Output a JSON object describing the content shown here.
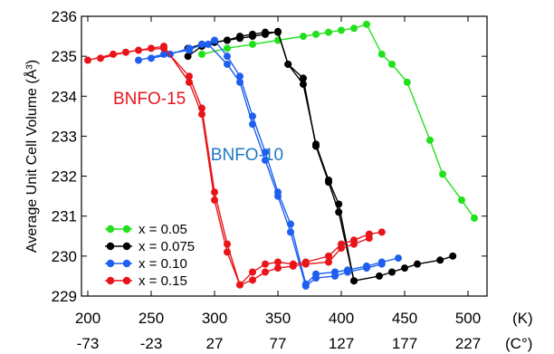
{
  "chart_data": {
    "type": "line",
    "ylabel": "Average Unit Cell Volume (Å³)",
    "x_unit_label": "(K)",
    "x2_unit_label": "(C°)",
    "xlim": [
      195,
      515
    ],
    "ylim": [
      229,
      236
    ],
    "x_ticks": [
      200,
      250,
      300,
      350,
      400,
      450,
      500
    ],
    "x_tick_labels": [
      "200",
      "250",
      "300",
      "350",
      "400",
      "450",
      "500"
    ],
    "x2_tick_labels": [
      "-73",
      "-23",
      "27",
      "77",
      "127",
      "177",
      "227"
    ],
    "y_ticks": [
      229,
      230,
      231,
      232,
      233,
      234,
      235,
      236
    ],
    "y_tick_labels": [
      "229",
      "230",
      "231",
      "232",
      "233",
      "234",
      "235",
      "236"
    ],
    "legend_position": "bottom-left",
    "annotations": [
      {
        "text": "BNFO-15",
        "x": 220,
        "y": 233.8,
        "color": "#e8141a"
      },
      {
        "text": "BNFO-10",
        "x": 297,
        "y": 232.4,
        "color": "#1e78c8"
      }
    ],
    "series": [
      {
        "name": "x = 0.05",
        "color": "#22e11c",
        "segments": [
          [
            [
              290,
              235.05
            ],
            [
              310,
              235.2
            ],
            [
              330,
              235.3
            ],
            [
              350,
              235.4
            ],
            [
              370,
              235.5
            ],
            [
              380,
              235.55
            ],
            [
              390,
              235.6
            ],
            [
              400,
              235.65
            ],
            [
              410,
              235.7
            ],
            [
              420,
              235.8
            ],
            [
              432,
              235.05
            ],
            [
              440,
              234.8
            ],
            [
              452,
              234.35
            ],
            [
              470,
              232.9
            ],
            [
              480,
              232.05
            ],
            [
              495,
              231.4
            ],
            [
              505,
              230.95
            ]
          ]
        ]
      },
      {
        "name": "x = 0.075",
        "color": "#000000",
        "segments": [
          [
            [
              279,
              235.2
            ],
            [
              290,
              235.3
            ],
            [
              300,
              235.35
            ],
            [
              310,
              235.4
            ],
            [
              320,
              235.45
            ],
            [
              330,
              235.5
            ],
            [
              340,
              235.55
            ],
            [
              350,
              235.62
            ],
            [
              358,
              234.8
            ],
            [
              370,
              234.3
            ],
            [
              380,
              232.8
            ],
            [
              390,
              231.9
            ],
            [
              398,
              231.3
            ],
            [
              410,
              229.38
            ],
            [
              430,
              229.5
            ],
            [
              440,
              229.6
            ],
            [
              450,
              229.7
            ],
            [
              460,
              229.8
            ],
            [
              478,
              229.9
            ],
            [
              488,
              230.0
            ]
          ],
          [
            [
              279,
              235.0
            ],
            [
              290,
              235.25
            ],
            [
              300,
              235.35
            ],
            [
              310,
              235.4
            ],
            [
              320,
              235.5
            ],
            [
              330,
              235.55
            ],
            [
              340,
              235.6
            ],
            [
              350,
              235.6
            ],
            [
              358,
              234.8
            ],
            [
              370,
              234.45
            ],
            [
              380,
              232.75
            ],
            [
              390,
              231.85
            ],
            [
              398,
              231.1
            ],
            [
              410,
              229.38
            ]
          ]
        ]
      },
      {
        "name": "x = 0.10",
        "color": "#1e5ff0",
        "segments": [
          [
            [
              240,
              234.9
            ],
            [
              260,
              235.05
            ],
            [
              280,
              235.15
            ],
            [
              290,
              235.3
            ],
            [
              300,
              235.4
            ],
            [
              310,
              235.0
            ],
            [
              320,
              234.5
            ],
            [
              330,
              233.5
            ],
            [
              340,
              232.6
            ],
            [
              350,
              231.6
            ],
            [
              360,
              230.8
            ],
            [
              372,
              229.3
            ],
            [
              380,
              229.55
            ],
            [
              395,
              229.6
            ],
            [
              405,
              229.65
            ],
            [
              420,
              229.75
            ],
            [
              432,
              229.85
            ],
            [
              445,
              229.95
            ]
          ],
          [
            [
              250,
              234.95
            ],
            [
              265,
              235.05
            ],
            [
              280,
              235.2
            ],
            [
              295,
              235.3
            ],
            [
              310,
              234.8
            ],
            [
              320,
              234.35
            ],
            [
              330,
              233.3
            ],
            [
              340,
              232.4
            ],
            [
              350,
              231.5
            ],
            [
              360,
              230.6
            ],
            [
              372,
              229.25
            ],
            [
              380,
              229.45
            ],
            [
              395,
              229.5
            ],
            [
              405,
              229.6
            ],
            [
              420,
              229.7
            ],
            [
              432,
              229.8
            ]
          ]
        ]
      },
      {
        "name": "x = 0.15",
        "color": "#e8141a",
        "segments": [
          [
            [
              200,
              234.9
            ],
            [
              220,
              235.05
            ],
            [
              240,
              235.15
            ],
            [
              260,
              235.2
            ],
            [
              280,
              234.5
            ],
            [
              290,
              233.7
            ],
            [
              300,
              231.6
            ],
            [
              310,
              230.3
            ],
            [
              320,
              229.28
            ],
            [
              330,
              229.6
            ],
            [
              340,
              229.8
            ],
            [
              350,
              229.85
            ],
            [
              362,
              229.8
            ],
            [
              372,
              229.85
            ],
            [
              390,
              230.0
            ],
            [
              400,
              230.3
            ],
            [
              410,
              230.4
            ],
            [
              422,
              230.55
            ],
            [
              432,
              230.6
            ]
          ],
          [
            [
              210,
              234.95
            ],
            [
              230,
              235.1
            ],
            [
              250,
              235.2
            ],
            [
              260,
              235.25
            ],
            [
              280,
              234.35
            ],
            [
              290,
              233.55
            ],
            [
              300,
              231.4
            ],
            [
              310,
              230.1
            ],
            [
              320,
              229.28
            ],
            [
              330,
              229.4
            ],
            [
              340,
              229.6
            ],
            [
              350,
              229.7
            ],
            [
              362,
              229.75
            ],
            [
              372,
              229.8
            ],
            [
              390,
              229.85
            ],
            [
              400,
              230.2
            ],
            [
              410,
              230.3
            ],
            [
              422,
              230.45
            ]
          ]
        ]
      }
    ]
  }
}
